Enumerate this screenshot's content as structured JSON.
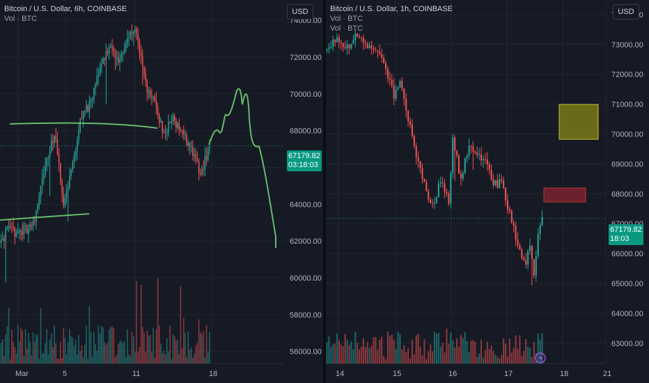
{
  "colors": {
    "up": "#26a69a",
    "down": "#ef5350",
    "drawing": "#66bb6a",
    "grid": "#222633",
    "background": "#161a25",
    "tag": "#089981",
    "long_box": "#8f8d14",
    "short_box": "#8f2430"
  },
  "left": {
    "title": "Bitcoin / U.S. Dollar, 6h, COINBASE",
    "indicator": "Vol · BTC",
    "currency": "USD",
    "last_price": "67179.82",
    "countdown": "03:18:03"
  },
  "right": {
    "title": "Bitcoin / U.S. Dollar, 1h, COINBASE",
    "indicators": [
      "Vol · BTC",
      "Vol · BTC"
    ],
    "currency": "USD",
    "last_price": "67179.82",
    "countdown": "18:03",
    "icon": "lightning-icon"
  },
  "chart_data": [
    {
      "type": "candlestick",
      "symbol": "Bitcoin / U.S. Dollar",
      "interval": "6h",
      "exchange": "COINBASE",
      "y_ticks": [
        "74000.00",
        "72000.00",
        "70000.00",
        "68000.00",
        "66000.00",
        "64000.00",
        "62000.00",
        "60000.00",
        "58000.00",
        "56000.00"
      ],
      "x_ticks": [
        "Mar",
        "5",
        "11",
        "18"
      ],
      "ylim": [
        55800,
        74800
      ],
      "last_price": 67179.82,
      "approx_close_path": [
        [
          0,
          62000
        ],
        [
          8,
          62500
        ],
        [
          16,
          62500
        ],
        [
          24,
          62900
        ],
        [
          32,
          66000
        ],
        [
          38,
          67900
        ],
        [
          44,
          64000
        ],
        [
          50,
          66200
        ],
        [
          56,
          68900
        ],
        [
          62,
          69400
        ],
        [
          68,
          71500
        ],
        [
          74,
          72600
        ],
        [
          80,
          71800
        ],
        [
          86,
          73000
        ],
        [
          92,
          73400
        ],
        [
          98,
          70500
        ],
        [
          104,
          69500
        ],
        [
          110,
          67800
        ],
        [
          116,
          68700
        ],
        [
          122,
          67900
        ],
        [
          128,
          67000
        ],
        [
          134,
          65600
        ],
        [
          138,
          66600
        ],
        [
          140,
          67200
        ]
      ],
      "drawings": [
        "two horizontal support / resistance lines",
        "hand-drawn projected price path"
      ]
    },
    {
      "type": "candlestick",
      "symbol": "Bitcoin / U.S. Dollar",
      "interval": "1h",
      "exchange": "COINBASE",
      "y_ticks": [
        "74000.00",
        "73000.00",
        "72000.00",
        "71000.00",
        "70000.00",
        "69000.00",
        "68000.00",
        "67000.00",
        "66000.00",
        "65000.00",
        "64000.00",
        "63000.00"
      ],
      "x_ticks": [
        "14",
        "15",
        "16",
        "17",
        "18",
        "21"
      ],
      "ylim": [
        62600,
        74300
      ],
      "last_price": 67179.82,
      "approx_close_path": [
        [
          0,
          73000
        ],
        [
          5,
          73100
        ],
        [
          10,
          72900
        ],
        [
          15,
          73300
        ],
        [
          20,
          73000
        ],
        [
          25,
          72700
        ],
        [
          30,
          72000
        ],
        [
          33,
          71300
        ],
        [
          36,
          71800
        ],
        [
          40,
          70500
        ],
        [
          44,
          69200
        ],
        [
          48,
          68300
        ],
        [
          52,
          67600
        ],
        [
          56,
          68400
        ],
        [
          60,
          67800
        ],
        [
          62,
          69800
        ],
        [
          66,
          68500
        ],
        [
          70,
          69700
        ],
        [
          74,
          69200
        ],
        [
          78,
          69100
        ],
        [
          82,
          68300
        ],
        [
          86,
          68400
        ],
        [
          90,
          67300
        ],
        [
          94,
          66300
        ],
        [
          98,
          65500
        ],
        [
          100,
          66400
        ],
        [
          102,
          65300
        ],
        [
          104,
          66800
        ],
        [
          106,
          67200
        ]
      ],
      "annotations": [
        "long target box (yellow)",
        "short zone box (red)"
      ]
    }
  ]
}
